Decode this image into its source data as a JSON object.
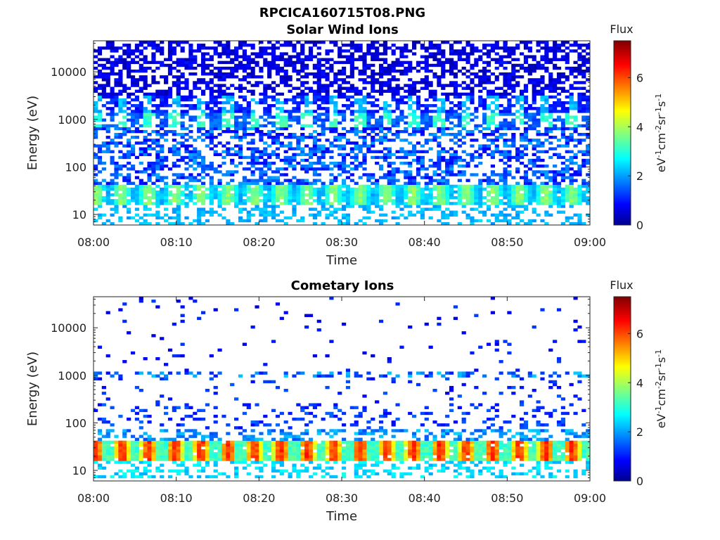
{
  "figure_title": "RPCICA160715T08.PNG",
  "colorbar": {
    "label": "Flux",
    "unit_text": "eV-1cm-2sr-1s-1",
    "ticks": [
      "0",
      "2",
      "4",
      "6"
    ],
    "range": [
      0,
      7.5
    ],
    "colormap": "jet"
  },
  "chart_data": [
    {
      "type": "heatmap",
      "title": "Solar Wind Ions",
      "xlabel": "Time",
      "ylabel": "Energy (eV)",
      "x_ticks": [
        "08:00",
        "08:10",
        "08:20",
        "08:30",
        "08:40",
        "08:50",
        "09:00"
      ],
      "x_range": [
        "08:00",
        "09:00"
      ],
      "y_ticks": [
        "10",
        "100",
        "1000",
        "10000"
      ],
      "y_scale": "log",
      "y_range": [
        6,
        45000
      ],
      "z_range": [
        0,
        7.5
      ],
      "background": "white (no counts)",
      "features": [
        {
          "energy_eV": [
            15,
            40
          ],
          "flux": [
            2,
            4
          ],
          "periodic_peak_min": 3
        },
        {
          "energy_eV": [
            700,
            3000
          ],
          "flux": [
            1.5,
            3.5
          ],
          "periodic_peak_min": 3
        },
        {
          "energy_eV": [
            3000,
            40000
          ],
          "flux": [
            0.3,
            1.2
          ]
        }
      ]
    },
    {
      "type": "heatmap",
      "title": "Cometary Ions",
      "xlabel": "Time",
      "ylabel": "Energy (eV)",
      "x_ticks": [
        "08:00",
        "08:10",
        "08:20",
        "08:30",
        "08:40",
        "08:50",
        "09:00"
      ],
      "x_range": [
        "08:00",
        "09:00"
      ],
      "y_ticks": [
        "10",
        "100",
        "1000",
        "10000"
      ],
      "y_scale": "log",
      "y_range": [
        6,
        45000
      ],
      "z_range": [
        0,
        7.5
      ],
      "background": "white (no counts)",
      "features": [
        {
          "energy_eV": [
            15,
            40
          ],
          "flux": [
            4,
            6.5
          ],
          "periodic_peak_min": 3
        },
        {
          "energy_eV": [
            7,
            15
          ],
          "flux": [
            2,
            3
          ]
        },
        {
          "energy_eV": [
            600,
            1200
          ],
          "flux": [
            1,
            2.5
          ]
        },
        {
          "energy_eV": [
            50,
            200
          ],
          "flux": [
            0.8,
            1.8
          ]
        }
      ]
    }
  ]
}
